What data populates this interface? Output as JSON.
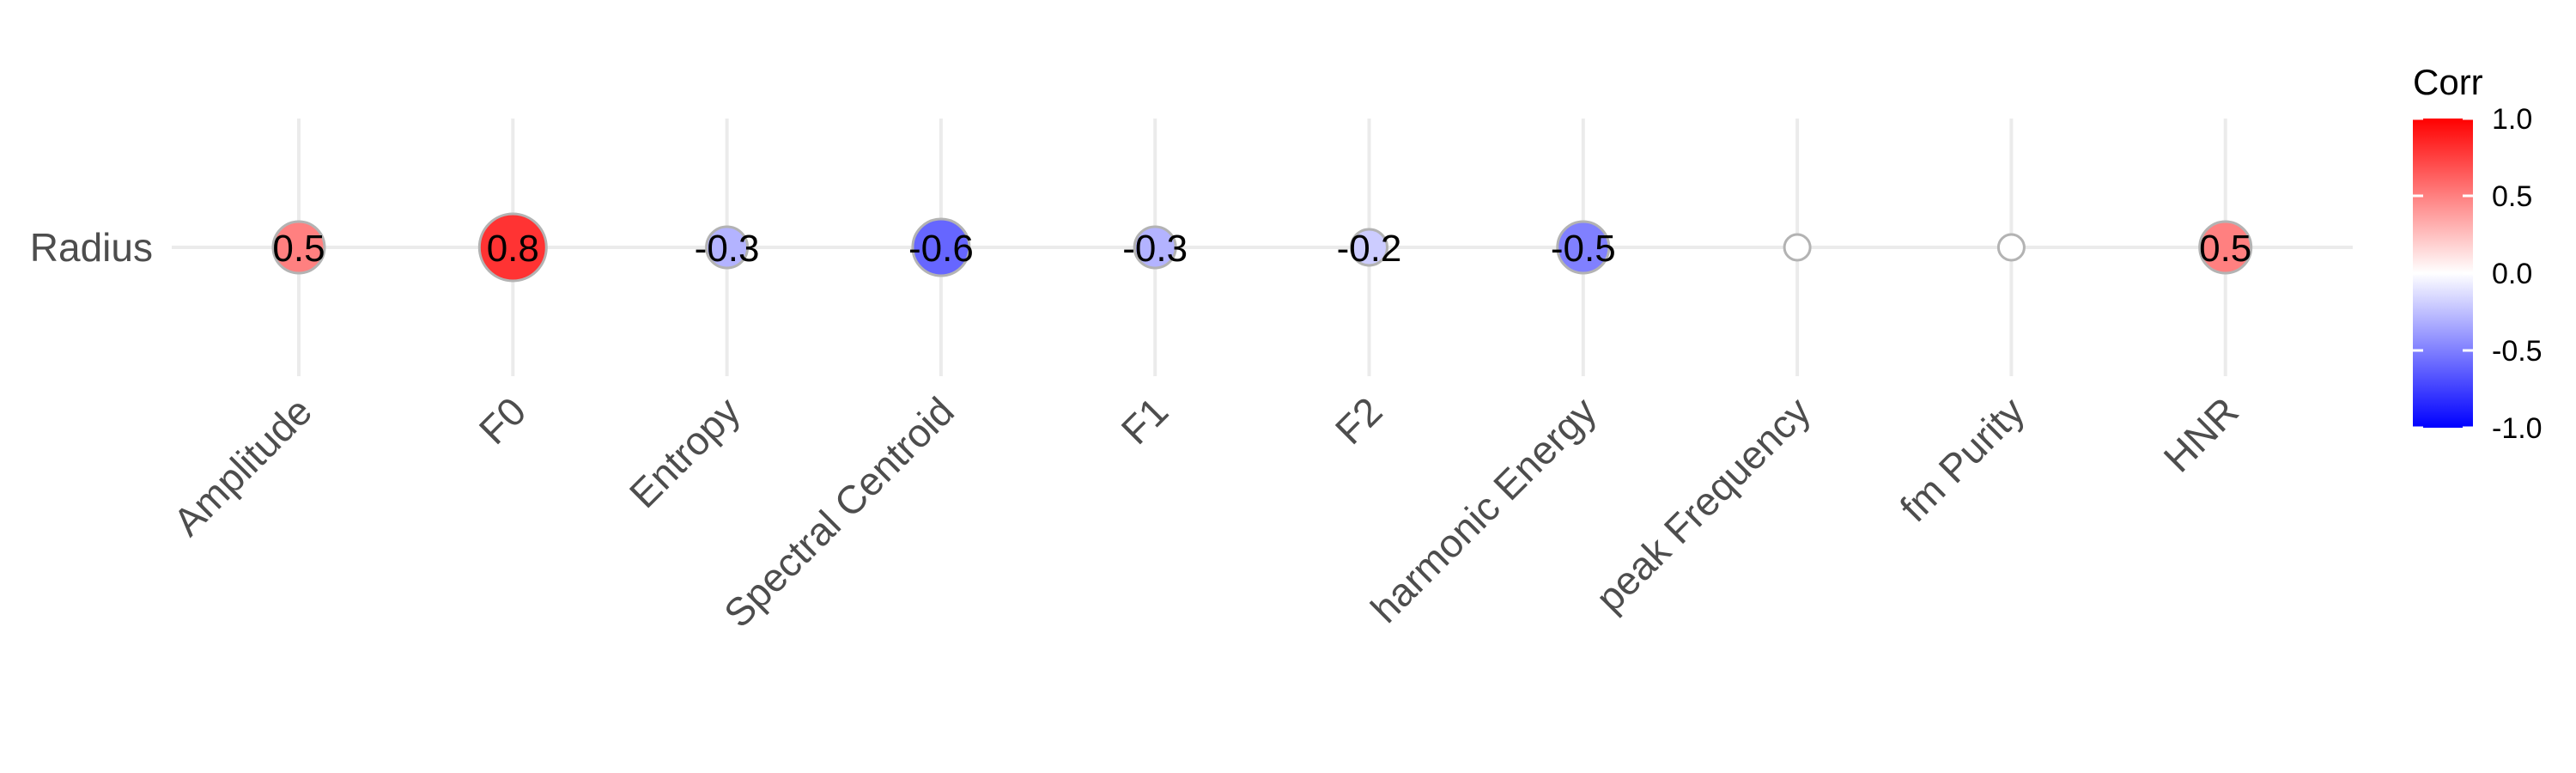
{
  "chart_data": {
    "type": "heatmap",
    "rows": [
      "Radius"
    ],
    "categories": [
      "Amplitude",
      "F0",
      "Entropy",
      "Spectral Centroid",
      "F1",
      "F2",
      "harmonic Energy",
      "peak Frequency",
      "fm Purity",
      "HNR"
    ],
    "values": [
      0.5,
      0.8,
      -0.3,
      -0.6,
      -0.3,
      -0.2,
      -0.5,
      0.0,
      0.0,
      0.5
    ],
    "value_labels": [
      "0.5",
      "0.8",
      "-0.3",
      "-0.6",
      "-0.3",
      "-0.2",
      "-0.5",
      "",
      "",
      "0.5"
    ],
    "legend": {
      "title": "Corr",
      "ticks": [
        "1.0",
        "0.5",
        "0.0",
        "-0.5",
        "-1.0"
      ],
      "tick_values": [
        1.0,
        0.5,
        0.0,
        -0.5,
        -1.0
      ],
      "placement": "right",
      "range": [
        -1,
        1
      ]
    },
    "colors": {
      "low": "#0000ff",
      "mid": "#ffffff",
      "high": "#ff0000",
      "grid": "#ebebeb",
      "circle_border": "#b3b3b3"
    },
    "grid": true,
    "marker": "circle sized by absolute correlation"
  }
}
